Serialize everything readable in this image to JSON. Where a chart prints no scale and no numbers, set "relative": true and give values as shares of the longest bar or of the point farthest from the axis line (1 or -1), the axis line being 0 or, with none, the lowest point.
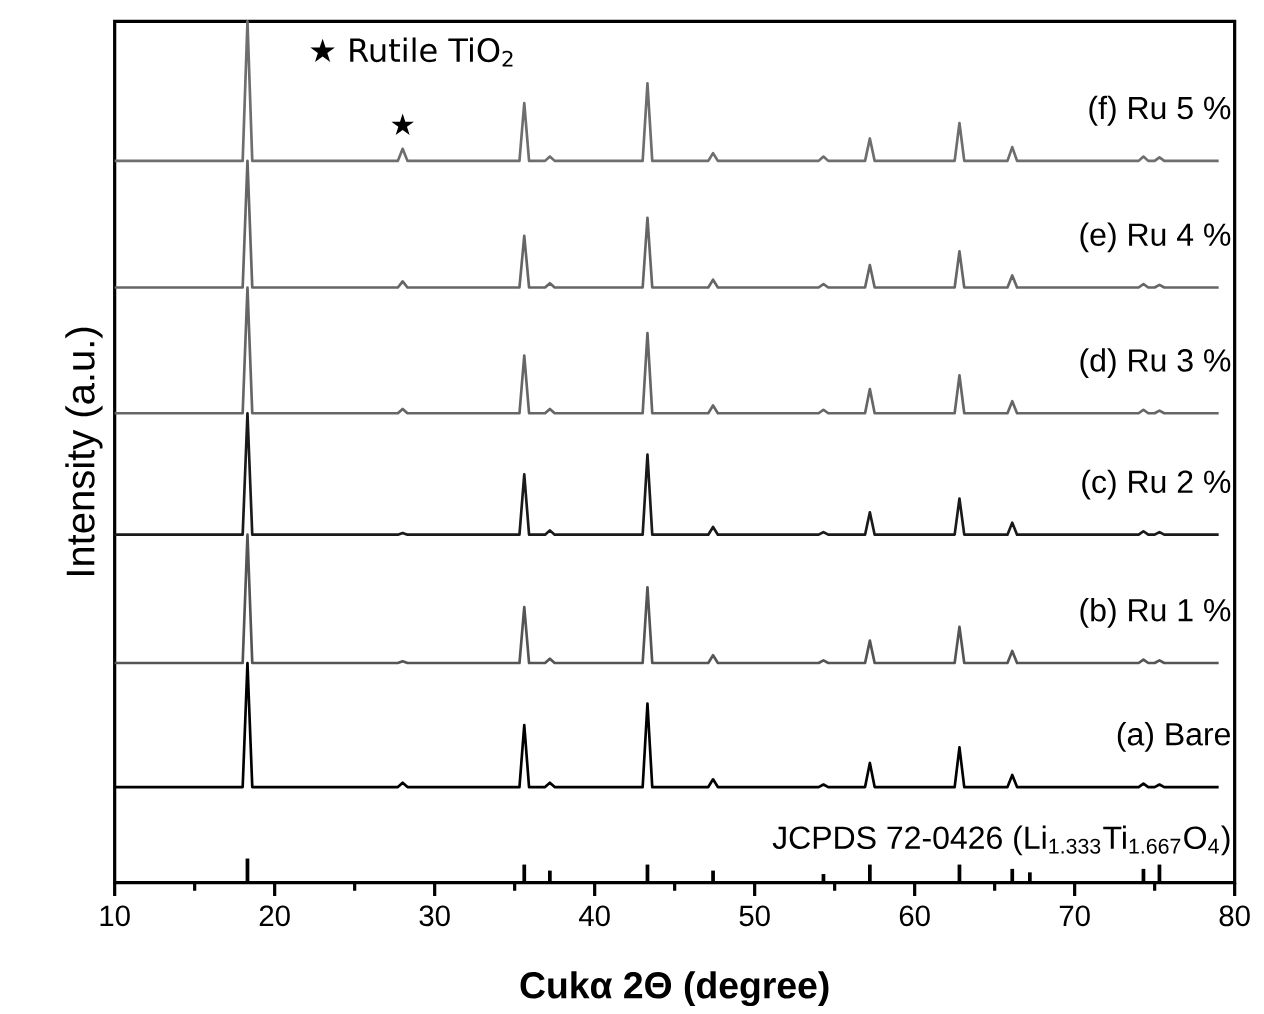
{
  "chart_data": {
    "type": "line",
    "relative": true,
    "xlabel": "**Cukα  2Θ (degree)**",
    "ylabel": "Intensity (a.u.)",
    "xlim": [
      10,
      80
    ],
    "xticks": [
      10,
      {
        "value": 15,
        "label": null
      },
      20,
      {
        "value": 25,
        "label": null
      },
      30,
      {
        "value": 35,
        "label": null
      },
      40,
      {
        "value": 45,
        "label": null
      },
      50,
      {
        "value": 55,
        "label": null
      },
      60,
      {
        "value": 65,
        "label": null
      },
      70,
      {
        "value": 75,
        "label": null
      },
      80
    ],
    "x": [
      10,
      18.0,
      18.3,
      18.6,
      27.7,
      28.0,
      28.3,
      35.3,
      35.6,
      35.9,
      36.9,
      37.2,
      37.5,
      43.0,
      43.3,
      43.6,
      47.1,
      47.4,
      47.7,
      54.0,
      54.3,
      54.6,
      56.9,
      57.2,
      57.5,
      62.5,
      62.8,
      63.1,
      65.8,
      66.1,
      66.4,
      74.0,
      74.3,
      74.6,
      75.0,
      75.3,
      75.6,
      79
    ],
    "annotations": [
      "★ Rutile TiO$_{2}$",
      {
        "text": "★",
        "x": 28.0,
        "y": 0.852
      }
    ],
    "series": [
      {
        "name": "(a)  Bare",
        "color": "#000000",
        "values": [
          0.111,
          0.111,
          0.255,
          0.111,
          0.111,
          0.116,
          0.111,
          0.111,
          0.183,
          0.111,
          0.111,
          0.116,
          0.111,
          0.111,
          0.208,
          0.111,
          0.111,
          0.12,
          0.111,
          0.111,
          0.114,
          0.111,
          0.111,
          0.139,
          0.111,
          0.111,
          0.157,
          0.111,
          0.111,
          0.125,
          0.111,
          0.111,
          0.115,
          0.111,
          0.111,
          0.114,
          0.111,
          0.111
        ]
      },
      {
        "name": "(b)  Ru 1 %",
        "color": "#555555",
        "values": [
          0.255,
          0.255,
          0.404,
          0.255,
          0.255,
          0.257,
          0.255,
          0.255,
          0.32,
          0.255,
          0.255,
          0.26,
          0.255,
          0.255,
          0.343,
          0.255,
          0.255,
          0.264,
          0.255,
          0.255,
          0.258,
          0.255,
          0.255,
          0.281,
          0.255,
          0.255,
          0.297,
          0.255,
          0.255,
          0.269,
          0.255,
          0.255,
          0.259,
          0.255,
          0.255,
          0.258,
          0.255,
          0.255
        ]
      },
      {
        "name": "(c)  Ru 2 %",
        "color": "#1a1a1a",
        "values": [
          0.404,
          0.404,
          0.545,
          0.404,
          0.404,
          0.406,
          0.404,
          0.404,
          0.474,
          0.404,
          0.404,
          0.409,
          0.404,
          0.404,
          0.497,
          0.404,
          0.404,
          0.413,
          0.404,
          0.404,
          0.407,
          0.404,
          0.404,
          0.43,
          0.404,
          0.404,
          0.446,
          0.404,
          0.404,
          0.418,
          0.404,
          0.404,
          0.408,
          0.404,
          0.404,
          0.407,
          0.404,
          0.404
        ]
      },
      {
        "name": "(d)  Ru 3 %",
        "color": "#666666",
        "values": [
          0.545,
          0.545,
          0.691,
          0.545,
          0.545,
          0.55,
          0.545,
          0.545,
          0.612,
          0.545,
          0.545,
          0.55,
          0.545,
          0.545,
          0.638,
          0.545,
          0.545,
          0.554,
          0.545,
          0.545,
          0.549,
          0.545,
          0.545,
          0.573,
          0.545,
          0.545,
          0.589,
          0.545,
          0.545,
          0.559,
          0.545,
          0.545,
          0.549,
          0.545,
          0.545,
          0.548,
          0.545,
          0.545
        ]
      },
      {
        "name": "(e)  Ru 4 %",
        "color": "#666666",
        "values": [
          0.691,
          0.691,
          0.838,
          0.691,
          0.691,
          0.698,
          0.691,
          0.691,
          0.751,
          0.691,
          0.691,
          0.696,
          0.691,
          0.691,
          0.772,
          0.691,
          0.691,
          0.7,
          0.691,
          0.691,
          0.695,
          0.691,
          0.691,
          0.717,
          0.691,
          0.691,
          0.733,
          0.691,
          0.691,
          0.705,
          0.691,
          0.691,
          0.695,
          0.691,
          0.691,
          0.694,
          0.691,
          0.691
        ]
      },
      {
        "name": "(f)  Ru 5 %",
        "color": "#6e6e6e",
        "values": [
          0.838,
          0.838,
          1.0,
          0.838,
          0.838,
          0.852,
          0.838,
          0.838,
          0.905,
          0.838,
          0.838,
          0.843,
          0.838,
          0.838,
          0.928,
          0.838,
          0.838,
          0.847,
          0.838,
          0.838,
          0.843,
          0.838,
          0.838,
          0.864,
          0.838,
          0.838,
          0.882,
          0.838,
          0.838,
          0.854,
          0.838,
          0.838,
          0.843,
          0.838,
          0.838,
          0.842,
          0.838,
          0.838
        ]
      },
      {
        "name": "JCPDS 72-0426 (Li$_{1.333}$Ti$_{1.667}$O$_{4}$)",
        "type": "bar",
        "color": "#000000",
        "x": [
          18.3,
          35.6,
          37.2,
          43.3,
          47.4,
          54.3,
          57.2,
          62.8,
          66.1,
          67.2,
          74.3,
          75.3
        ],
        "values": [
          0.028,
          0.021,
          0.014,
          0.021,
          0.014,
          0.01,
          0.021,
          0.021,
          0.016,
          0.012,
          0.016,
          0.021
        ]
      }
    ]
  }
}
